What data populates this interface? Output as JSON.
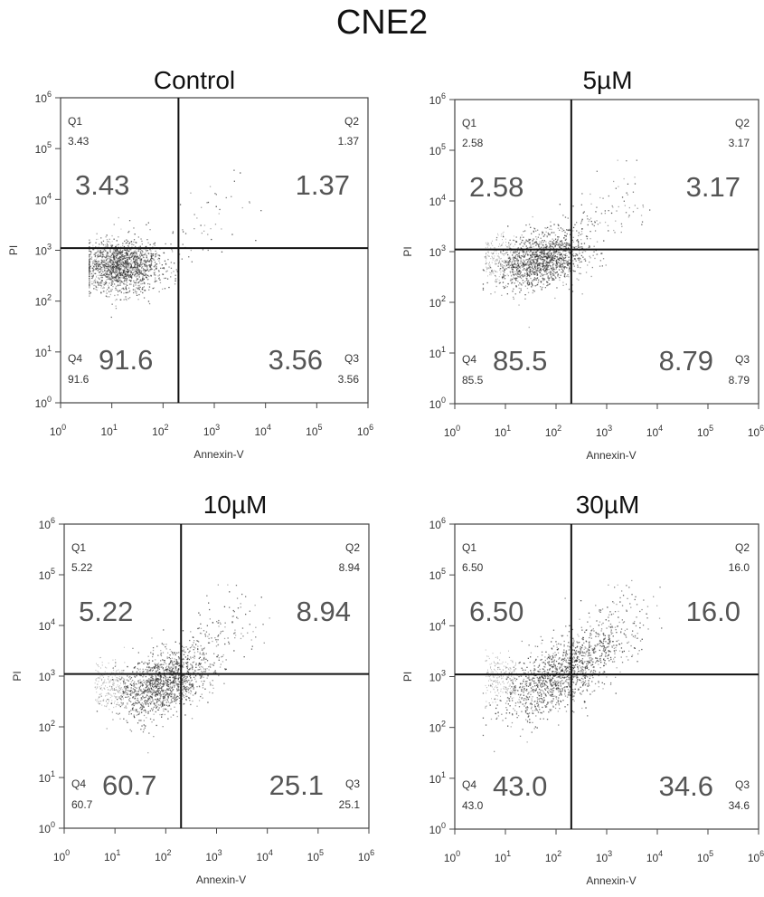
{
  "title": "CNE2",
  "chart_data": [
    {
      "type": "scatter",
      "title": "Control",
      "xlabel": "Annexin-V",
      "ylabel": "PI",
      "scale": "log",
      "xlim": [
        1,
        1000000
      ],
      "ylim": [
        1,
        1000000
      ],
      "x_ticks": [
        "10^0",
        "10^1",
        "10^2",
        "10^3",
        "10^4",
        "10^5",
        "10^6"
      ],
      "y_ticks": [
        "10^0",
        "10^1",
        "10^2",
        "10^3",
        "10^4",
        "10^5",
        "10^6"
      ],
      "quadrant_gates": {
        "x": 200,
        "y": 1100
      },
      "quadrants": [
        {
          "name": "Q1",
          "value": "3.43"
        },
        {
          "name": "Q2",
          "value": "1.37"
        },
        {
          "name": "Q3",
          "value": "3.56"
        },
        {
          "name": "Q4",
          "value": "91.6"
        }
      ]
    },
    {
      "type": "scatter",
      "title": "5µM",
      "xlabel": "Annexin-V",
      "ylabel": "PI",
      "scale": "log",
      "xlim": [
        1,
        1000000
      ],
      "ylim": [
        1,
        1000000
      ],
      "x_ticks": [
        "10^0",
        "10^1",
        "10^2",
        "10^3",
        "10^4",
        "10^5",
        "10^6"
      ],
      "y_ticks": [
        "10^0",
        "10^1",
        "10^2",
        "10^3",
        "10^4",
        "10^5",
        "10^6"
      ],
      "quadrant_gates": {
        "x": 200,
        "y": 1100
      },
      "quadrants": [
        {
          "name": "Q1",
          "value": "2.58"
        },
        {
          "name": "Q2",
          "value": "3.17"
        },
        {
          "name": "Q3",
          "value": "8.79"
        },
        {
          "name": "Q4",
          "value": "85.5"
        }
      ]
    },
    {
      "type": "scatter",
      "title": "10µM",
      "xlabel": "Annexin-V",
      "ylabel": "PI",
      "scale": "log",
      "xlim": [
        1,
        1000000
      ],
      "ylim": [
        1,
        1000000
      ],
      "x_ticks": [
        "10^0",
        "10^1",
        "10^2",
        "10^3",
        "10^4",
        "10^5",
        "10^6"
      ],
      "y_ticks": [
        "10^0",
        "10^1",
        "10^2",
        "10^3",
        "10^4",
        "10^5",
        "10^6"
      ],
      "quadrant_gates": {
        "x": 200,
        "y": 1100
      },
      "quadrants": [
        {
          "name": "Q1",
          "value": "5.22"
        },
        {
          "name": "Q2",
          "value": "8.94"
        },
        {
          "name": "Q3",
          "value": "25.1"
        },
        {
          "name": "Q4",
          "value": "60.7"
        }
      ]
    },
    {
      "type": "scatter",
      "title": "30µM",
      "xlabel": "Annexin-V",
      "ylabel": "PI",
      "scale": "log",
      "xlim": [
        1,
        1000000
      ],
      "ylim": [
        1,
        1000000
      ],
      "x_ticks": [
        "10^0",
        "10^1",
        "10^2",
        "10^3",
        "10^4",
        "10^5",
        "10^6"
      ],
      "y_ticks": [
        "10^0",
        "10^1",
        "10^2",
        "10^3",
        "10^4",
        "10^5",
        "10^6"
      ],
      "quadrant_gates": {
        "x": 200,
        "y": 1100
      },
      "quadrants": [
        {
          "name": "Q1",
          "value": "6.50"
        },
        {
          "name": "Q2",
          "value": "16.0"
        },
        {
          "name": "Q3",
          "value": "34.6"
        },
        {
          "name": "Q4",
          "value": "43.0"
        }
      ]
    }
  ]
}
